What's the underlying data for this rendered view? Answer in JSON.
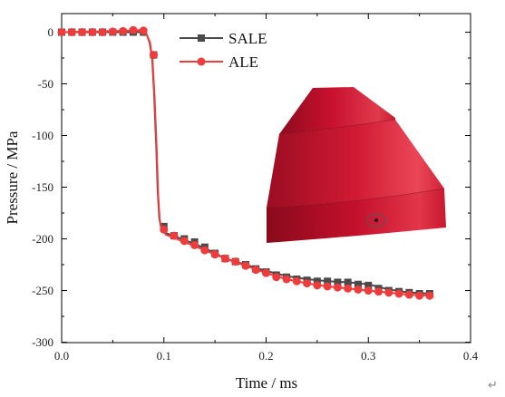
{
  "chart_data": {
    "type": "line",
    "xlabel": "Time / ms",
    "ylabel": "Pressure / MPa",
    "xlim": [
      0.0,
      0.4
    ],
    "ylim": [
      -300,
      10
    ],
    "xticks": [
      {
        "value": 0.0,
        "label": "0.0"
      },
      {
        "value": 0.1,
        "label": "0.1"
      },
      {
        "value": 0.2,
        "label": "0.2"
      },
      {
        "value": 0.3,
        "label": "0.3"
      },
      {
        "value": 0.4,
        "label": "0.4"
      }
    ],
    "yticks": [
      {
        "value": 0,
        "label": "0"
      },
      {
        "value": -50,
        "label": "-50"
      },
      {
        "value": -100,
        "label": "-100"
      },
      {
        "value": -150,
        "label": "-150"
      },
      {
        "value": -200,
        "label": "-200"
      },
      {
        "value": -250,
        "label": "-250"
      },
      {
        "value": -300,
        "label": "-300"
      }
    ],
    "legend_position": "top-center",
    "series": [
      {
        "name": "SALE",
        "color": "#4a4a4a",
        "marker": "square",
        "line": [
          [
            0,
            0
          ],
          [
            0.07,
            0
          ],
          [
            0.079,
            0
          ],
          [
            0.083,
            -2
          ],
          [
            0.086,
            -10
          ],
          [
            0.0885,
            -25
          ],
          [
            0.0905,
            -60
          ],
          [
            0.0925,
            -110
          ],
          [
            0.094,
            -155
          ],
          [
            0.0955,
            -180
          ],
          [
            0.097,
            -188
          ],
          [
            0.101,
            -194
          ],
          [
            0.12,
            -201
          ],
          [
            0.14,
            -209
          ],
          [
            0.16,
            -219
          ],
          [
            0.18,
            -225
          ],
          [
            0.2,
            -231
          ],
          [
            0.22,
            -236
          ],
          [
            0.24,
            -239
          ],
          [
            0.26,
            -241
          ],
          [
            0.28,
            -242
          ],
          [
            0.3,
            -244
          ],
          [
            0.32,
            -249
          ],
          [
            0.34,
            -252
          ],
          [
            0.362,
            -253
          ]
        ],
        "markers": [
          [
            0,
            0
          ],
          [
            0.01,
            0
          ],
          [
            0.02,
            0
          ],
          [
            0.03,
            0
          ],
          [
            0.04,
            0
          ],
          [
            0.05,
            0
          ],
          [
            0.06,
            0
          ],
          [
            0.07,
            0
          ],
          [
            0.08,
            0
          ],
          [
            0.09,
            -22
          ],
          [
            0.1,
            -188
          ],
          [
            0.11,
            -197
          ],
          [
            0.12,
            -200
          ],
          [
            0.13,
            -203
          ],
          [
            0.14,
            -208
          ],
          [
            0.15,
            -214
          ],
          [
            0.16,
            -219
          ],
          [
            0.17,
            -222
          ],
          [
            0.18,
            -225
          ],
          [
            0.19,
            -229
          ],
          [
            0.2,
            -232
          ],
          [
            0.21,
            -235
          ],
          [
            0.22,
            -237
          ],
          [
            0.23,
            -239
          ],
          [
            0.24,
            -240
          ],
          [
            0.25,
            -241
          ],
          [
            0.26,
            -241
          ],
          [
            0.27,
            -242
          ],
          [
            0.28,
            -242
          ],
          [
            0.29,
            -244
          ],
          [
            0.3,
            -245
          ],
          [
            0.31,
            -248
          ],
          [
            0.32,
            -250
          ],
          [
            0.33,
            -251
          ],
          [
            0.34,
            -252
          ],
          [
            0.35,
            -253
          ],
          [
            0.36,
            -253
          ]
        ]
      },
      {
        "name": "ALE",
        "color": "#ee3b3b",
        "marker": "circle",
        "line": [
          [
            0,
            0
          ],
          [
            0.068,
            1.5
          ],
          [
            0.075,
            2
          ],
          [
            0.08,
            1.5
          ],
          [
            0.083,
            -2
          ],
          [
            0.0865,
            -10
          ],
          [
            0.089,
            -28
          ],
          [
            0.091,
            -65
          ],
          [
            0.093,
            -115
          ],
          [
            0.0945,
            -158
          ],
          [
            0.096,
            -182
          ],
          [
            0.098,
            -190
          ],
          [
            0.102,
            -196
          ],
          [
            0.12,
            -203
          ],
          [
            0.14,
            -211
          ],
          [
            0.16,
            -219
          ],
          [
            0.18,
            -226
          ],
          [
            0.2,
            -233
          ],
          [
            0.22,
            -239
          ],
          [
            0.24,
            -243
          ],
          [
            0.26,
            -246
          ],
          [
            0.28,
            -248
          ],
          [
            0.3,
            -250
          ],
          [
            0.32,
            -252
          ],
          [
            0.34,
            -254
          ],
          [
            0.362,
            -255
          ]
        ],
        "markers": [
          [
            0,
            0
          ],
          [
            0.01,
            0
          ],
          [
            0.02,
            0
          ],
          [
            0.03,
            0
          ],
          [
            0.04,
            0
          ],
          [
            0.05,
            0.5
          ],
          [
            0.06,
            1
          ],
          [
            0.07,
            2
          ],
          [
            0.08,
            1.5
          ],
          [
            0.09,
            -22
          ],
          [
            0.1,
            -191
          ],
          [
            0.11,
            -197
          ],
          [
            0.12,
            -202
          ],
          [
            0.13,
            -206
          ],
          [
            0.14,
            -211
          ],
          [
            0.15,
            -215
          ],
          [
            0.16,
            -219
          ],
          [
            0.17,
            -222
          ],
          [
            0.18,
            -226
          ],
          [
            0.19,
            -230
          ],
          [
            0.2,
            -233
          ],
          [
            0.21,
            -237
          ],
          [
            0.22,
            -239
          ],
          [
            0.23,
            -241
          ],
          [
            0.24,
            -243
          ],
          [
            0.25,
            -245
          ],
          [
            0.26,
            -246
          ],
          [
            0.27,
            -247
          ],
          [
            0.28,
            -248
          ],
          [
            0.29,
            -249
          ],
          [
            0.3,
            -250
          ],
          [
            0.31,
            -251
          ],
          [
            0.32,
            -252
          ],
          [
            0.33,
            -253
          ],
          [
            0.34,
            -254
          ],
          [
            0.35,
            -255
          ],
          [
            0.36,
            -255
          ]
        ]
      }
    ]
  },
  "inset": {
    "description_icon": "red-frustum-model-icon",
    "body_color": "#c8102e",
    "probe_color": "#222222"
  },
  "return_symbol": "↵"
}
